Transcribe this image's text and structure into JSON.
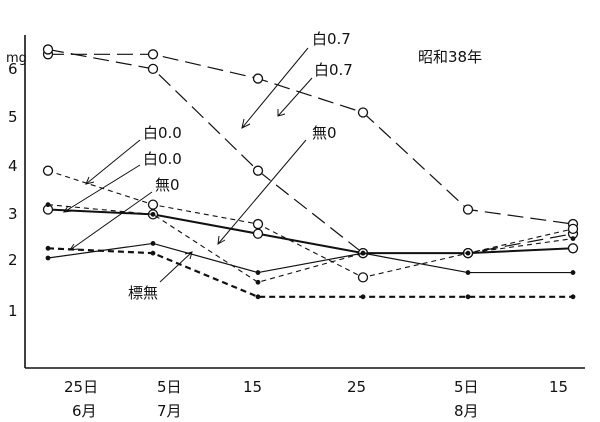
{
  "chart_data": {
    "type": "line",
    "title": "昭和38年",
    "unit": "mg",
    "ylim": [
      0,
      6.5
    ],
    "y_ticks": [
      "1",
      "2",
      "3",
      "4",
      "5",
      "6"
    ],
    "x_ticks": [
      {
        "day": "25日",
        "month": "6月"
      },
      {
        "day": "5日",
        "month": "7月"
      },
      {
        "day": "15",
        "month": ""
      },
      {
        "day": "25",
        "month": ""
      },
      {
        "day": "5日",
        "month": "8月"
      },
      {
        "day": "15",
        "month": ""
      }
    ],
    "series": [
      {
        "name": "白0.7",
        "values": [
          [
            0,
            6.2
          ],
          [
            10,
            6.2
          ],
          [
            20,
            5.7
          ],
          [
            30,
            5.0
          ],
          [
            40,
            3.0
          ],
          [
            50,
            2.7
          ]
        ],
        "style": "dash-long",
        "marker": "open"
      },
      {
        "name": "白0.7",
        "values": [
          [
            0,
            6.3
          ],
          [
            10,
            5.9
          ],
          [
            20,
            3.8
          ],
          [
            30,
            2.1
          ],
          [
            40,
            2.1
          ],
          [
            50,
            2.5
          ]
        ],
        "style": "dash-long",
        "marker": "open"
      },
      {
        "name": "白0.0",
        "values": [
          [
            0,
            3.8
          ],
          [
            10,
            3.1
          ],
          [
            20,
            2.7
          ],
          [
            30,
            1.6
          ],
          [
            40,
            2.1
          ],
          [
            50,
            2.6
          ]
        ],
        "style": "dash-short",
        "marker": "open"
      },
      {
        "name": "白0.0",
        "values": [
          [
            0,
            3.0
          ],
          [
            10,
            2.9
          ],
          [
            20,
            2.5
          ],
          [
            30,
            2.1
          ],
          [
            40,
            2.1
          ],
          [
            50,
            2.2
          ]
        ],
        "style": "solid-thick",
        "marker": "open"
      },
      {
        "name": "無0",
        "values": [
          [
            0,
            3.1
          ],
          [
            10,
            2.9
          ],
          [
            20,
            1.5
          ],
          [
            30,
            2.1
          ],
          [
            40,
            2.1
          ],
          [
            50,
            2.4
          ]
        ],
        "style": "dash-short",
        "marker": "dot"
      },
      {
        "name": "標無",
        "values": [
          [
            0,
            2.0
          ],
          [
            10,
            2.3
          ],
          [
            20,
            1.7
          ],
          [
            30,
            2.1
          ],
          [
            40,
            1.7
          ],
          [
            50,
            1.7
          ]
        ],
        "style": "solid",
        "marker": "dot"
      },
      {
        "name": "無0",
        "values": [
          [
            0,
            2.2
          ],
          [
            10,
            2.1
          ],
          [
            20,
            1.2
          ],
          [
            30,
            1.2
          ],
          [
            40,
            1.2
          ],
          [
            50,
            1.2
          ]
        ],
        "style": "dash-bold",
        "marker": "dot"
      }
    ],
    "annotations": [
      {
        "text": "白0.7"
      },
      {
        "text": "白0.7"
      },
      {
        "text": "無0"
      },
      {
        "text": "白0.0"
      },
      {
        "text": "白0.0"
      },
      {
        "text": "無0"
      },
      {
        "text": "標無"
      }
    ]
  }
}
